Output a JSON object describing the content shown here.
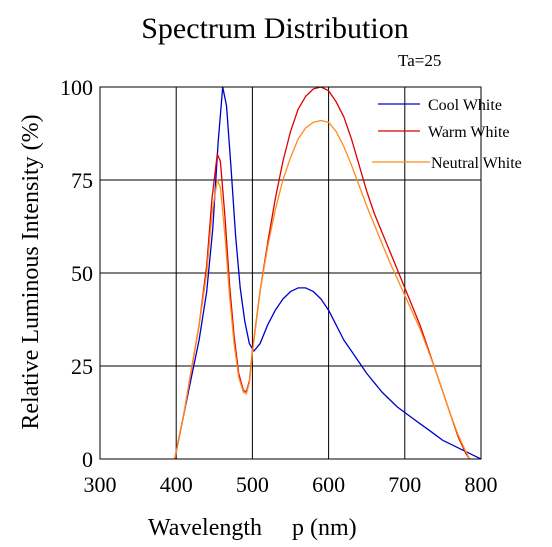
{
  "chart_data": {
    "type": "line",
    "title": "Spectrum Distribution",
    "subtitle": "Ta=25",
    "xlabel": "Wavelength     p (nm)",
    "ylabel": "Relative Luminous Intensity (%)",
    "xlim": [
      300,
      800
    ],
    "ylim": [
      0,
      100
    ],
    "xticks": [
      "300",
      "400",
      "500",
      "600",
      "700",
      "800"
    ],
    "yticks": [
      "0",
      "25",
      "50",
      "75",
      "100"
    ],
    "grid": true,
    "legend_position": "top-right",
    "series": [
      {
        "name": "Cool White",
        "color": "#0000cc",
        "points": [
          [
            398,
            0
          ],
          [
            410,
            12
          ],
          [
            420,
            22
          ],
          [
            430,
            32
          ],
          [
            440,
            45
          ],
          [
            448,
            62
          ],
          [
            455,
            85
          ],
          [
            461,
            100
          ],
          [
            466,
            95
          ],
          [
            472,
            78
          ],
          [
            478,
            60
          ],
          [
            484,
            46
          ],
          [
            490,
            37
          ],
          [
            496,
            31
          ],
          [
            502,
            29
          ],
          [
            510,
            31
          ],
          [
            520,
            36
          ],
          [
            530,
            40
          ],
          [
            540,
            43
          ],
          [
            550,
            45
          ],
          [
            560,
            46
          ],
          [
            570,
            46
          ],
          [
            580,
            45
          ],
          [
            590,
            43
          ],
          [
            600,
            40
          ],
          [
            610,
            36
          ],
          [
            620,
            32
          ],
          [
            630,
            29
          ],
          [
            640,
            26
          ],
          [
            650,
            23
          ],
          [
            660,
            20.5
          ],
          [
            670,
            18
          ],
          [
            680,
            16
          ],
          [
            690,
            14
          ],
          [
            700,
            12.5
          ],
          [
            710,
            11
          ],
          [
            720,
            9.5
          ],
          [
            730,
            8
          ],
          [
            740,
            6.5
          ],
          [
            750,
            5
          ],
          [
            760,
            4
          ],
          [
            770,
            3
          ],
          [
            780,
            2
          ],
          [
            790,
            1
          ],
          [
            800,
            0
          ]
        ]
      },
      {
        "name": "Warm White",
        "color": "#dd0000",
        "points": [
          [
            398,
            0
          ],
          [
            410,
            12
          ],
          [
            420,
            24
          ],
          [
            430,
            36
          ],
          [
            440,
            52
          ],
          [
            447,
            70
          ],
          [
            454,
            82
          ],
          [
            458,
            80
          ],
          [
            464,
            65
          ],
          [
            470,
            47
          ],
          [
            476,
            33
          ],
          [
            482,
            23
          ],
          [
            488,
            18.5
          ],
          [
            492,
            18
          ],
          [
            496,
            21
          ],
          [
            500,
            29
          ],
          [
            510,
            45
          ],
          [
            520,
            58
          ],
          [
            530,
            70
          ],
          [
            540,
            80
          ],
          [
            550,
            88
          ],
          [
            560,
            94
          ],
          [
            570,
            97.5
          ],
          [
            580,
            99.5
          ],
          [
            590,
            100
          ],
          [
            600,
            99
          ],
          [
            610,
            96
          ],
          [
            620,
            92
          ],
          [
            630,
            86
          ],
          [
            640,
            79
          ],
          [
            650,
            72
          ],
          [
            660,
            66
          ],
          [
            670,
            61
          ],
          [
            680,
            56
          ],
          [
            690,
            51
          ],
          [
            700,
            46
          ],
          [
            710,
            41
          ],
          [
            720,
            36
          ],
          [
            730,
            30
          ],
          [
            740,
            24
          ],
          [
            750,
            18
          ],
          [
            760,
            12
          ],
          [
            770,
            6
          ],
          [
            780,
            1.5
          ],
          [
            785,
            0
          ]
        ]
      },
      {
        "name": "Neutral White",
        "color": "#ff8c1a",
        "points": [
          [
            398,
            0
          ],
          [
            410,
            12
          ],
          [
            420,
            24
          ],
          [
            430,
            36
          ],
          [
            440,
            50
          ],
          [
            447,
            66
          ],
          [
            454,
            75
          ],
          [
            458,
            73
          ],
          [
            464,
            60
          ],
          [
            470,
            44
          ],
          [
            476,
            31
          ],
          [
            482,
            22
          ],
          [
            488,
            18
          ],
          [
            492,
            17.5
          ],
          [
            496,
            20.5
          ],
          [
            500,
            28.5
          ],
          [
            510,
            45
          ],
          [
            520,
            57
          ],
          [
            530,
            67
          ],
          [
            540,
            75
          ],
          [
            550,
            81
          ],
          [
            560,
            86
          ],
          [
            570,
            89
          ],
          [
            580,
            90.5
          ],
          [
            590,
            91
          ],
          [
            600,
            90.5
          ],
          [
            610,
            88
          ],
          [
            620,
            84
          ],
          [
            630,
            79
          ],
          [
            640,
            73.5
          ],
          [
            650,
            68
          ],
          [
            660,
            63
          ],
          [
            670,
            58
          ],
          [
            680,
            53
          ],
          [
            690,
            48.5
          ],
          [
            700,
            44
          ],
          [
            710,
            39.5
          ],
          [
            720,
            35
          ],
          [
            730,
            29.5
          ],
          [
            740,
            24
          ],
          [
            750,
            18
          ],
          [
            760,
            12
          ],
          [
            770,
            6.5
          ],
          [
            780,
            2
          ],
          [
            785,
            0
          ]
        ]
      }
    ]
  }
}
